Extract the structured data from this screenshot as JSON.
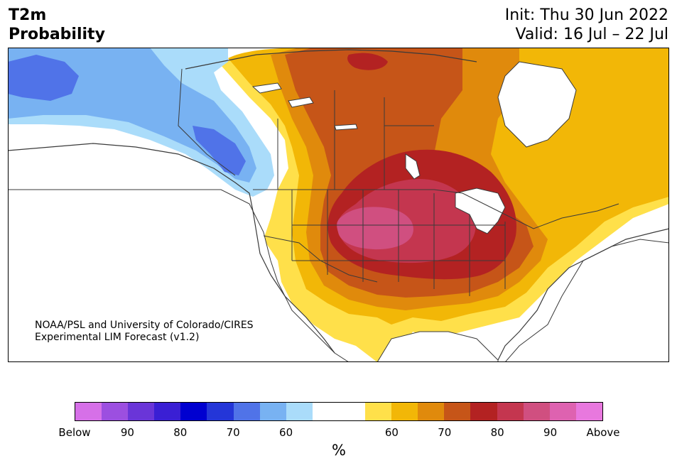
{
  "title": {
    "left_line1": "T2m",
    "left_line2": "Probability",
    "right_line1": "Init: Thu 30 Jun 2022",
    "right_line2": "Valid: 16 Jul – 22 Jul"
  },
  "credit": {
    "line1": "NOAA/PSL and University of Colorado/CIRES",
    "line2": "Experimental LIM Forecast (v1.2)"
  },
  "colorbar": {
    "colors": [
      "#d670e8",
      "#9c4fe0",
      "#6a35d8",
      "#3a1fd4",
      "#0000d0",
      "#2436d8",
      "#5073e8",
      "#78b2f2",
      "#aadcfa",
      "#ffffff",
      "#ffffff",
      "#ffe04a",
      "#f2b707",
      "#e08a0c",
      "#c65518",
      "#b32222",
      "#c4364f",
      "#d04f80",
      "#de62b0",
      "#e878de"
    ],
    "tick_labels": [
      "Below",
      "90",
      "80",
      "70",
      "60",
      "60",
      "70",
      "80",
      "90",
      "Above"
    ],
    "unit": "%"
  },
  "map": {
    "background": "#ffffff",
    "border_color": "#3a3a3a"
  }
}
